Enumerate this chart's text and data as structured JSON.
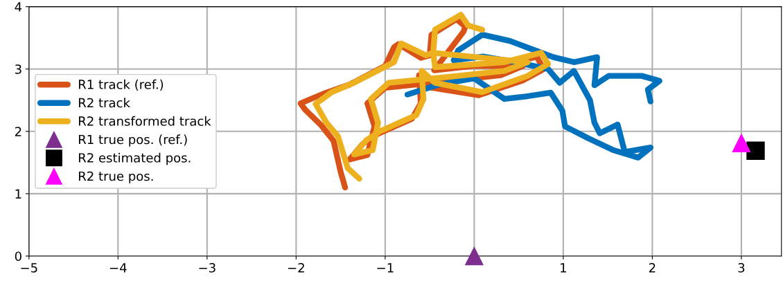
{
  "chart_data": {
    "type": "line",
    "xlim": [
      -5,
      3.45
    ],
    "ylim": [
      0,
      4
    ],
    "xticks": [
      -5,
      -4,
      -3,
      -2,
      -1,
      {
        "value": 0,
        "label": null
      },
      1,
      2,
      3
    ],
    "yticks": [
      0,
      1,
      2,
      3,
      4
    ],
    "grid": true,
    "legend": "left",
    "series": [
      {
        "name": "R1 track (ref.)",
        "color": "#d95319",
        "marker": "none",
        "x": [
          -1.45,
          -1.5,
          -1.58,
          -1.72,
          -1.9,
          -1.95,
          -1.7,
          -1.4,
          -1.0,
          -0.9,
          -0.85,
          -0.6,
          -0.5,
          -0.48,
          -0.2,
          -0.1,
          -0.12,
          -0.45,
          0.0,
          0.35,
          0.7,
          0.78,
          0.55,
          0.05,
          -0.48,
          -0.62,
          -0.6,
          -0.7,
          -1.1,
          -1.25,
          -1.4,
          -1.2,
          -1.12,
          -1.2,
          -1.0,
          -0.2,
          0.3,
          0.55
        ],
        "values": [
          1.1,
          1.35,
          1.85,
          2.1,
          2.35,
          2.45,
          2.6,
          2.75,
          3.05,
          3.35,
          3.4,
          3.18,
          3.22,
          3.55,
          3.8,
          3.68,
          3.6,
          2.98,
          3.05,
          3.05,
          3.2,
          3.0,
          2.82,
          2.58,
          2.7,
          2.9,
          2.45,
          2.2,
          1.95,
          1.8,
          1.55,
          1.62,
          2.08,
          2.45,
          2.7,
          2.82,
          2.9,
          3.05
        ]
      },
      {
        "name": "R2 track",
        "color": "#0072bd",
        "marker": "none",
        "x": [
          -0.75,
          -0.4,
          0.0,
          0.34,
          0.58,
          0.86,
          0.99,
          1.02,
          1.28,
          1.56,
          1.84,
          1.98,
          1.69,
          1.61,
          1.41,
          1.35,
          1.3,
          1.12,
          0.96,
          0.83,
          0.5,
          0.1,
          -0.23,
          -0.18,
          0.09,
          0.4,
          0.89,
          1.12,
          1.38,
          1.35,
          1.51,
          1.88,
          2.08,
          1.95,
          1.98
        ],
        "values": [
          2.59,
          2.75,
          2.85,
          2.52,
          2.56,
          2.62,
          2.33,
          2.08,
          1.89,
          1.7,
          1.58,
          1.74,
          1.67,
          2.11,
          1.97,
          2.14,
          2.5,
          2.97,
          2.78,
          3.0,
          3.1,
          3.2,
          3.14,
          3.3,
          3.55,
          3.45,
          3.19,
          3.11,
          3.19,
          2.74,
          2.89,
          2.89,
          2.81,
          2.67,
          2.48
        ]
      },
      {
        "name": "R2 transformed track",
        "color": "#edb120",
        "marker": "none",
        "x": [
          -1.29,
          -1.42,
          -1.53,
          -1.66,
          -1.78,
          -1.6,
          -1.35,
          -0.9,
          -0.82,
          -0.54,
          -0.46,
          -0.44,
          0.34,
          0.75,
          0.83,
          0.6,
          0.09,
          -0.44,
          -0.59,
          -0.57,
          -0.65,
          -1.06,
          -1.21,
          -1.35,
          -1.14,
          -1.08,
          -1.16,
          -0.96,
          -0.18,
          0.34,
          0.6,
          -0.46,
          -0.44,
          -0.15,
          -0.07,
          0.09
        ],
        "values": [
          1.24,
          1.41,
          1.92,
          2.14,
          2.44,
          2.63,
          2.78,
          3.11,
          3.41,
          3.22,
          3.26,
          3.03,
          3.11,
          3.26,
          3.08,
          2.89,
          2.63,
          2.78,
          2.97,
          2.52,
          2.26,
          2.0,
          1.86,
          1.63,
          1.7,
          2.14,
          2.52,
          2.78,
          2.89,
          2.97,
          3.11,
          3.26,
          3.63,
          3.87,
          3.7,
          3.63
        ]
      },
      {
        "name": "R1 true pos. (ref.)",
        "type": "scatter",
        "color": "#7e2f8e",
        "marker": "triangle",
        "x": [
          0
        ],
        "values": [
          0
        ]
      },
      {
        "name": "R2 estimated pos.",
        "type": "scatter",
        "color": "#000000",
        "marker": "square",
        "x": [
          3.16
        ],
        "values": [
          1.69
        ]
      },
      {
        "name": "R2 true pos.",
        "type": "scatter",
        "color": "#ff00ff",
        "marker": "triangle",
        "x": [
          3.0
        ],
        "values": [
          1.81
        ]
      }
    ]
  }
}
